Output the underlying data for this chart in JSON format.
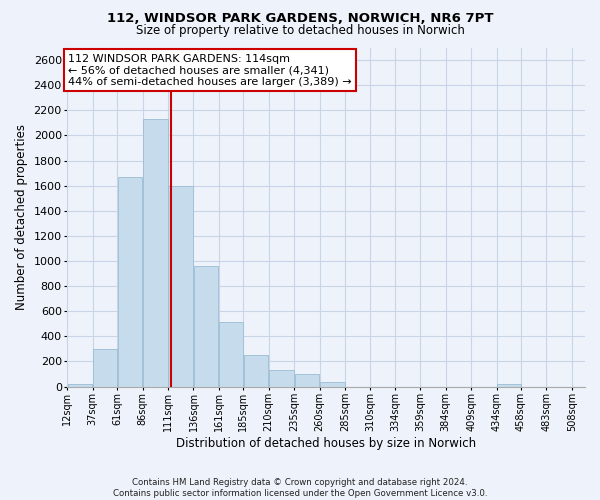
{
  "title": "112, WINDSOR PARK GARDENS, NORWICH, NR6 7PT",
  "subtitle": "Size of property relative to detached houses in Norwich",
  "xlabel": "Distribution of detached houses by size in Norwich",
  "ylabel": "Number of detached properties",
  "footer_lines": [
    "Contains HM Land Registry data © Crown copyright and database right 2024.",
    "Contains public sector information licensed under the Open Government Licence v3.0."
  ],
  "annotation_title": "112 WINDSOR PARK GARDENS: 114sqm",
  "annotation_line1": "← 56% of detached houses are smaller (4,341)",
  "annotation_line2": "44% of semi-detached houses are larger (3,389) →",
  "property_line_x": 114,
  "bar_centers": [
    24.5,
    49.0,
    73.5,
    98.5,
    123.5,
    148.5,
    173.0,
    197.5,
    222.5,
    247.5,
    272.5,
    297.5,
    322.0,
    346.5,
    371.5,
    396.5,
    421.5,
    446.0,
    470.5,
    495.5
  ],
  "bar_widths": [
    25,
    24,
    25,
    25,
    25,
    25,
    24,
    25,
    25,
    25,
    25,
    25,
    24,
    25,
    25,
    25,
    25,
    24,
    25,
    25
  ],
  "bar_heights": [
    20,
    300,
    1670,
    2130,
    1600,
    960,
    510,
    250,
    130,
    100,
    35,
    0,
    0,
    0,
    0,
    0,
    0,
    20,
    0,
    0
  ],
  "bar_color": "#c6dcec",
  "bar_edgecolor": "#9bbdd4",
  "property_line_color": "#cc0000",
  "annotation_box_edgecolor": "#cc0000",
  "ylim": [
    0,
    2700
  ],
  "yticks": [
    0,
    200,
    400,
    600,
    800,
    1000,
    1200,
    1400,
    1600,
    1800,
    2000,
    2200,
    2400,
    2600
  ],
  "xlim": [
    12,
    521
  ],
  "xtick_labels": [
    "12sqm",
    "37sqm",
    "61sqm",
    "86sqm",
    "111sqm",
    "136sqm",
    "161sqm",
    "185sqm",
    "210sqm",
    "235sqm",
    "260sqm",
    "285sqm",
    "310sqm",
    "334sqm",
    "359sqm",
    "384sqm",
    "409sqm",
    "434sqm",
    "458sqm",
    "483sqm",
    "508sqm"
  ],
  "xtick_positions": [
    12,
    37,
    61,
    86,
    111,
    136,
    161,
    185,
    210,
    235,
    260,
    285,
    310,
    334,
    359,
    384,
    409,
    434,
    458,
    483,
    508
  ],
  "grid_color": "#c8d4e8",
  "background_color": "#eef2fa"
}
